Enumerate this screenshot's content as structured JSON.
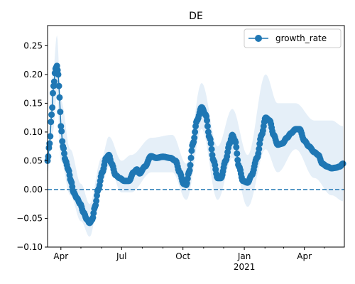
{
  "chart_data": {
    "type": "line",
    "title": "DE",
    "xlabel": "",
    "ylabel": "",
    "x_range": [
      "2020-03-12",
      "2021-05-31"
    ],
    "ylim": [
      -0.1,
      0.285
    ],
    "grid": false,
    "legend": {
      "position": "top-right",
      "entries": [
        "growth_rate"
      ]
    },
    "x_ticks": [
      {
        "date": "2020-04-01",
        "label": "Apr",
        "sublabel": ""
      },
      {
        "date": "2020-07-01",
        "label": "Jul",
        "sublabel": ""
      },
      {
        "date": "2020-10-01",
        "label": "Oct",
        "sublabel": ""
      },
      {
        "date": "2021-01-01",
        "label": "Jan",
        "sublabel": "2021"
      },
      {
        "date": "2021-04-01",
        "label": "Apr",
        "sublabel": ""
      }
    ],
    "x_minor_ticks": [
      "2020-05-01",
      "2020-06-01",
      "2020-08-01",
      "2020-09-01",
      "2020-11-01",
      "2020-12-01",
      "2021-02-01",
      "2021-03-01",
      "2021-05-01"
    ],
    "y_ticks": [
      {
        "value": -0.1,
        "label": "−0.10"
      },
      {
        "value": -0.05,
        "label": "−0.05"
      },
      {
        "value": 0.0,
        "label": "0.00"
      },
      {
        "value": 0.05,
        "label": "0.05"
      },
      {
        "value": 0.1,
        "label": "0.10"
      },
      {
        "value": 0.15,
        "label": "0.15"
      },
      {
        "value": 0.2,
        "label": "0.20"
      },
      {
        "value": 0.25,
        "label": "0.25"
      }
    ],
    "reference_line": {
      "y": 0.0,
      "style": "dashed"
    },
    "colors": {
      "series": "#1f77b4",
      "band": "#dce9f5"
    },
    "series": [
      {
        "name": "growth_rate",
        "marker": "circle",
        "anchors": [
          [
            "2020-03-12",
            0.05
          ],
          [
            "2020-03-15",
            0.08
          ],
          [
            "2020-03-18",
            0.13
          ],
          [
            "2020-03-21",
            0.18
          ],
          [
            "2020-03-24",
            0.21
          ],
          [
            "2020-03-26",
            0.215
          ],
          [
            "2020-03-28",
            0.2
          ],
          [
            "2020-03-30",
            0.16
          ],
          [
            "2020-04-01",
            0.11
          ],
          [
            "2020-04-04",
            0.075
          ],
          [
            "2020-04-08",
            0.05
          ],
          [
            "2020-04-12",
            0.035
          ],
          [
            "2020-04-16",
            0.015
          ],
          [
            "2020-04-20",
            -0.005
          ],
          [
            "2020-04-25",
            -0.015
          ],
          [
            "2020-04-30",
            -0.025
          ],
          [
            "2020-05-05",
            -0.04
          ],
          [
            "2020-05-10",
            -0.052
          ],
          [
            "2020-05-14",
            -0.058
          ],
          [
            "2020-05-18",
            -0.052
          ],
          [
            "2020-05-22",
            -0.03
          ],
          [
            "2020-05-27",
            0.0
          ],
          [
            "2020-06-02",
            0.03
          ],
          [
            "2020-06-08",
            0.055
          ],
          [
            "2020-06-12",
            0.06
          ],
          [
            "2020-06-16",
            0.045
          ],
          [
            "2020-06-22",
            0.025
          ],
          [
            "2020-06-28",
            0.02
          ],
          [
            "2020-07-05",
            0.015
          ],
          [
            "2020-07-12",
            0.015
          ],
          [
            "2020-07-19",
            0.03
          ],
          [
            "2020-07-24",
            0.035
          ],
          [
            "2020-07-28",
            0.028
          ],
          [
            "2020-08-05",
            0.04
          ],
          [
            "2020-08-14",
            0.058
          ],
          [
            "2020-08-22",
            0.055
          ],
          [
            "2020-09-01",
            0.057
          ],
          [
            "2020-09-12",
            0.055
          ],
          [
            "2020-09-20",
            0.05
          ],
          [
            "2020-09-26",
            0.03
          ],
          [
            "2020-10-02",
            0.01
          ],
          [
            "2020-10-06",
            0.008
          ],
          [
            "2020-10-10",
            0.03
          ],
          [
            "2020-10-16",
            0.08
          ],
          [
            "2020-10-22",
            0.12
          ],
          [
            "2020-10-29",
            0.143
          ],
          [
            "2020-11-04",
            0.13
          ],
          [
            "2020-11-10",
            0.09
          ],
          [
            "2020-11-16",
            0.05
          ],
          [
            "2020-11-22",
            0.02
          ],
          [
            "2020-11-27",
            0.02
          ],
          [
            "2020-12-04",
            0.05
          ],
          [
            "2020-12-10",
            0.08
          ],
          [
            "2020-12-14",
            0.095
          ],
          [
            "2020-12-18",
            0.085
          ],
          [
            "2020-12-24",
            0.04
          ],
          [
            "2020-12-30",
            0.015
          ],
          [
            "2021-01-06",
            0.012
          ],
          [
            "2021-01-12",
            0.025
          ],
          [
            "2021-01-20",
            0.055
          ],
          [
            "2021-01-27",
            0.095
          ],
          [
            "2021-02-02",
            0.125
          ],
          [
            "2021-02-08",
            0.12
          ],
          [
            "2021-02-14",
            0.095
          ],
          [
            "2021-02-20",
            0.078
          ],
          [
            "2021-02-27",
            0.08
          ],
          [
            "2021-03-06",
            0.09
          ],
          [
            "2021-03-12",
            0.098
          ],
          [
            "2021-03-19",
            0.105
          ],
          [
            "2021-03-25",
            0.105
          ],
          [
            "2021-04-01",
            0.085
          ],
          [
            "2021-04-08",
            0.075
          ],
          [
            "2021-04-16",
            0.065
          ],
          [
            "2021-04-22",
            0.06
          ],
          [
            "2021-04-28",
            0.045
          ],
          [
            "2021-05-05",
            0.04
          ],
          [
            "2021-05-12",
            0.037
          ],
          [
            "2021-05-18",
            0.038
          ],
          [
            "2021-05-24",
            0.04
          ],
          [
            "2021-05-29",
            0.045
          ]
        ],
        "band_lower": [
          [
            "2020-03-12",
            0.03
          ],
          [
            "2020-03-20",
            0.1
          ],
          [
            "2020-03-26",
            0.165
          ],
          [
            "2020-04-01",
            0.05
          ],
          [
            "2020-04-15",
            -0.01
          ],
          [
            "2020-05-01",
            -0.055
          ],
          [
            "2020-05-14",
            -0.082
          ],
          [
            "2020-06-01",
            0.01
          ],
          [
            "2020-06-12",
            0.04
          ],
          [
            "2020-07-01",
            -0.005
          ],
          [
            "2020-07-15",
            -0.005
          ],
          [
            "2020-08-15",
            0.03
          ],
          [
            "2020-09-15",
            0.03
          ],
          [
            "2020-10-06",
            -0.018
          ],
          [
            "2020-10-29",
            0.105
          ],
          [
            "2020-11-22",
            -0.018
          ],
          [
            "2020-12-14",
            0.055
          ],
          [
            "2021-01-06",
            -0.03
          ],
          [
            "2021-02-02",
            0.07
          ],
          [
            "2021-02-20",
            0.03
          ],
          [
            "2021-03-19",
            0.07
          ],
          [
            "2021-04-16",
            0.02
          ],
          [
            "2021-05-12",
            -0.01
          ],
          [
            "2021-05-29",
            -0.02
          ]
        ],
        "band_upper": [
          [
            "2020-03-12",
            0.075
          ],
          [
            "2020-03-20",
            0.2
          ],
          [
            "2020-03-26",
            0.268
          ],
          [
            "2020-04-01",
            0.155
          ],
          [
            "2020-04-15",
            0.07
          ],
          [
            "2020-05-01",
            0.01
          ],
          [
            "2020-05-14",
            -0.025
          ],
          [
            "2020-06-01",
            0.055
          ],
          [
            "2020-06-12",
            0.092
          ],
          [
            "2020-07-01",
            0.05
          ],
          [
            "2020-07-15",
            0.06
          ],
          [
            "2020-08-15",
            0.09
          ],
          [
            "2020-09-15",
            0.095
          ],
          [
            "2020-10-06",
            0.045
          ],
          [
            "2020-10-29",
            0.185
          ],
          [
            "2020-11-22",
            0.075
          ],
          [
            "2020-12-14",
            0.14
          ],
          [
            "2021-01-06",
            0.06
          ],
          [
            "2021-02-02",
            0.2
          ],
          [
            "2021-02-20",
            0.15
          ],
          [
            "2021-03-19",
            0.15
          ],
          [
            "2021-04-16",
            0.12
          ],
          [
            "2021-05-12",
            0.12
          ],
          [
            "2021-05-29",
            0.11
          ]
        ]
      }
    ]
  }
}
